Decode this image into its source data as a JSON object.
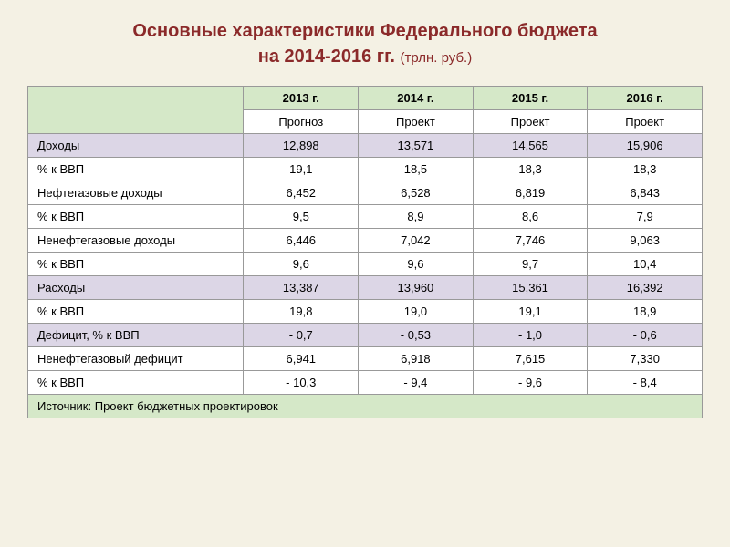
{
  "title": {
    "line1": "Основные характеристики Федерального бюджета",
    "line2_main": "на 2014-2016 гг. ",
    "line2_sub": "(трлн. руб.)"
  },
  "table": {
    "type": "table",
    "background_color": "#f4f1e4",
    "header_bg": "#d5e8c8",
    "highlight_bg": "#dcd6e6",
    "normal_bg": "#ffffff",
    "border_color": "#999999",
    "title_color": "#8b2a2a",
    "font_size": 13,
    "title_fontsize": 20,
    "columns": [
      "",
      "2013 г.",
      "2014 г.",
      "2015 г.",
      "2016 г."
    ],
    "subheaders": [
      "",
      "Прогноз",
      "Проект",
      "Проект",
      "Проект"
    ],
    "rows": [
      {
        "label": "Доходы",
        "v": [
          "12,898",
          "13,571",
          "14,565",
          "15,906"
        ],
        "hl": true
      },
      {
        "label": "% к ВВП",
        "v": [
          "19,1",
          "18,5",
          "18,3",
          "18,3"
        ],
        "hl": false
      },
      {
        "label": "Нефтегазовые доходы",
        "v": [
          "6,452",
          "6,528",
          "6,819",
          "6,843"
        ],
        "hl": false
      },
      {
        "label": "% к ВВП",
        "v": [
          "9,5",
          "8,9",
          "8,6",
          "7,9"
        ],
        "hl": false
      },
      {
        "label": "Ненефтегазовые доходы",
        "v": [
          "6,446",
          "7,042",
          "7,746",
          "9,063"
        ],
        "hl": false
      },
      {
        "label": "% к ВВП",
        "v": [
          "9,6",
          "9,6",
          "9,7",
          "10,4"
        ],
        "hl": false
      },
      {
        "label": "Расходы",
        "v": [
          "13,387",
          "13,960",
          "15,361",
          "16,392"
        ],
        "hl": true
      },
      {
        "label": "% к ВВП",
        "v": [
          "19,8",
          "19,0",
          "19,1",
          "18,9"
        ],
        "hl": false
      },
      {
        "label": "Дефицит, % к ВВП",
        "v": [
          "- 0,7",
          "- 0,53",
          "- 1,0",
          "- 0,6"
        ],
        "hl": true
      },
      {
        "label": "Ненефтегазовый дефицит",
        "v": [
          "6,941",
          "6,918",
          "7,615",
          "7,330"
        ],
        "hl": false
      },
      {
        "label": "% к ВВП",
        "v": [
          "- 10,3",
          "- 9,4",
          "- 9,6",
          "- 8,4"
        ],
        "hl": false
      }
    ],
    "footer": "Источник: Проект бюджетных проектировок"
  }
}
